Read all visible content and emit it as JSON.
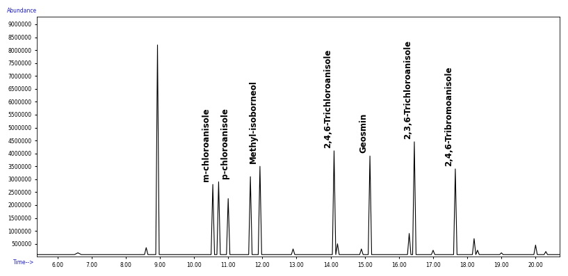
{
  "chart_data": {
    "type": "line",
    "x_label": "Time-->",
    "y_label": "Abundance",
    "x": [
      5.4,
      6.5,
      6.6,
      6.7,
      7.5,
      8.55,
      8.6,
      8.65,
      8.88,
      8.93,
      8.98,
      9.05,
      10.5,
      10.55,
      10.6,
      10.67,
      10.72,
      10.77,
      10.95,
      11.0,
      11.05,
      11.6,
      11.65,
      11.7,
      11.88,
      11.93,
      11.98,
      12.85,
      12.9,
      12.95,
      14.05,
      14.1,
      14.15,
      14.2,
      14.25,
      14.85,
      14.9,
      14.95,
      15.1,
      15.15,
      15.2,
      16.25,
      16.3,
      16.35,
      16.4,
      16.45,
      16.5,
      16.95,
      17.0,
      17.05,
      17.6,
      17.65,
      17.7,
      18.15,
      18.2,
      18.25,
      18.3,
      18.35,
      18.95,
      19.0,
      19.05,
      19.95,
      20.0,
      20.05,
      20.25,
      20.3,
      20.35,
      20.7
    ],
    "values": [
      80000,
      80000,
      150000,
      80000,
      80000,
      80000,
      350000,
      80000,
      80000,
      8200000,
      80000,
      80000,
      80000,
      2800000,
      80000,
      80000,
      2900000,
      80000,
      80000,
      2250000,
      80000,
      80000,
      3100000,
      80000,
      80000,
      3500000,
      80000,
      80000,
      300000,
      80000,
      80000,
      4100000,
      80000,
      500000,
      80000,
      80000,
      300000,
      80000,
      80000,
      3900000,
      80000,
      80000,
      900000,
      80000,
      80000,
      4450000,
      80000,
      80000,
      250000,
      80000,
      80000,
      3400000,
      80000,
      80000,
      700000,
      80000,
      250000,
      80000,
      80000,
      150000,
      80000,
      80000,
      450000,
      80000,
      80000,
      200000,
      80000,
      80000
    ],
    "color": "#000000",
    "annotations": [
      {
        "text": "m-chloroanisole",
        "x": 10.55
      },
      {
        "text": "p-chloroanisole",
        "x": 10.72
      },
      {
        "text": "Methyl-isoborneol",
        "x": 11.93
      },
      {
        "text": "2,4,6-Trichloroanisole",
        "x": 14.1
      },
      {
        "text": "Geosmin",
        "x": 15.15
      },
      {
        "text": "2,3,6-Trichloroanisole",
        "x": 16.45
      },
      {
        "text": "2,4,6-Tribromoanisole",
        "x": 17.65
      }
    ],
    "xlim": [
      5.4,
      20.7
    ],
    "ylim": [
      0,
      9300000
    ],
    "xticks": [
      {
        "value": 6,
        "label": "6.00"
      },
      {
        "value": 7,
        "label": "7.00"
      },
      {
        "value": 8,
        "label": "8.00"
      },
      {
        "value": 9,
        "label": "9.00"
      },
      {
        "value": 10,
        "label": "10.00"
      },
      {
        "value": 11,
        "label": "11.00"
      },
      {
        "value": 12,
        "label": "12.00"
      },
      {
        "value": 13,
        "label": "13.00"
      },
      {
        "value": 14,
        "label": "14.00"
      },
      {
        "value": 15,
        "label": "15.00"
      },
      {
        "value": 16,
        "label": "16.00"
      },
      {
        "value": 17,
        "label": "17.00"
      },
      {
        "value": 18,
        "label": "18.00"
      },
      {
        "value": 19,
        "label": "19.00"
      },
      {
        "value": 20,
        "label": "20.00"
      }
    ],
    "yticks": [
      500000,
      1000000,
      1500000,
      2000000,
      2500000,
      3000000,
      3500000,
      4000000,
      4500000,
      5000000,
      5500000,
      6000000,
      6500000,
      7000000,
      7500000,
      8000000,
      8500000,
      9000000
    ],
    "grid": false
  }
}
